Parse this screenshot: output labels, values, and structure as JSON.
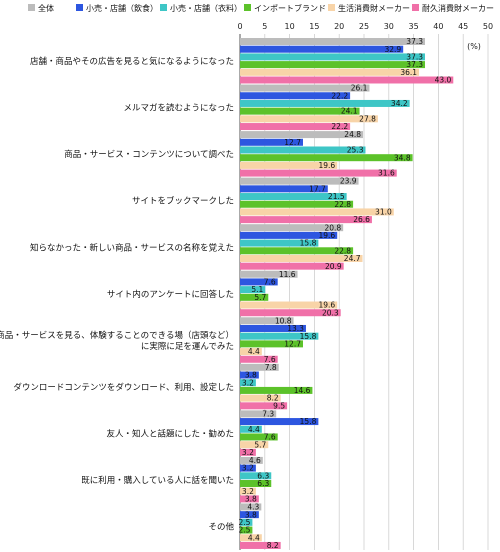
{
  "chart_data": {
    "type": "bar",
    "orientation": "horizontal",
    "unit_label": "(%)",
    "xlim": [
      0,
      50
    ],
    "x_ticks": [
      "0",
      "5",
      "10",
      "15",
      "20",
      "25",
      "30",
      "35",
      "40",
      "45",
      "50"
    ],
    "legend_position": "top",
    "grid": true,
    "categories": [
      "店舗・商品やその広告を見ると気になるようになった",
      "メルマガを読むようになった",
      "商品・サービス・コンテンツについて調べた",
      "サイトをブックマークした",
      "知らなかった・新しい商品・サービスの名称を覚えた",
      "サイト内のアンケートに回答した",
      "商品・サービスを見る、体験することのできる場（店頭など）に実際に足を運んでみた",
      "ダウンロードコンテンツをダウンロード、利用、設定した",
      "友人・知人と話題にした・勧めた",
      "既に利用・購入している人に話を聞いた",
      "その他"
    ],
    "series": [
      {
        "name": "全体",
        "color": "#bcbcbc",
        "values": [
          37.3,
          26.1,
          24.8,
          23.9,
          20.8,
          11.6,
          10.8,
          7.8,
          7.3,
          4.6,
          4.3
        ]
      },
      {
        "name": "小売・店舗（飲食）",
        "color": "#2d56e0",
        "values": [
          32.9,
          22.2,
          12.7,
          17.7,
          19.6,
          7.6,
          13.3,
          3.8,
          15.8,
          3.2,
          3.8
        ]
      },
      {
        "name": "小売・店舗（衣料）",
        "color": "#3ec6c6",
        "values": [
          37.3,
          34.2,
          25.3,
          21.5,
          15.8,
          5.1,
          15.8,
          3.2,
          4.4,
          6.3,
          2.5
        ]
      },
      {
        "name": "インポートブランド",
        "color": "#5cc22a",
        "values": [
          37.3,
          24.1,
          34.8,
          22.8,
          22.8,
          5.7,
          12.7,
          14.6,
          7.6,
          6.3,
          2.5
        ]
      },
      {
        "name": "生活消費財メーカー",
        "color": "#f8d4a8",
        "values": [
          36.1,
          27.8,
          19.6,
          31.0,
          24.7,
          19.6,
          4.4,
          8.2,
          5.7,
          3.2,
          4.4
        ]
      },
      {
        "name": "耐久消費財メーカー",
        "color": "#f070a8",
        "values": [
          43.0,
          22.2,
          31.6,
          26.6,
          20.9,
          20.3,
          7.6,
          9.5,
          3.2,
          3.8,
          8.2
        ]
      }
    ]
  }
}
